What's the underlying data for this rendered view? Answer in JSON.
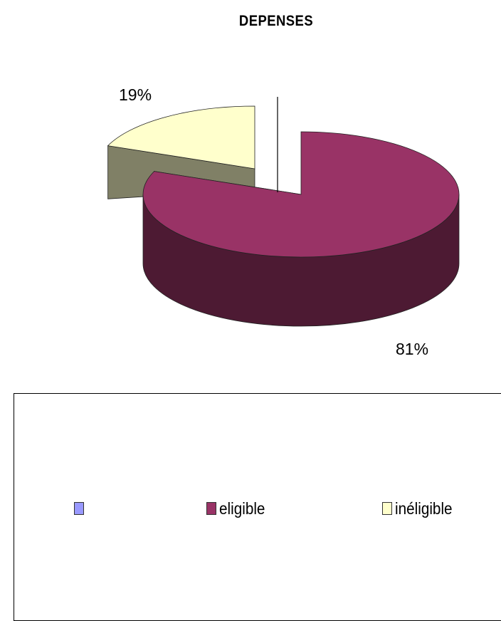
{
  "chart_data": {
    "type": "pie",
    "title": "DEPENSES",
    "slices": [
      {
        "name": "eligible",
        "value": 81,
        "label": "81%",
        "color": "#993366",
        "side_color": "#4d1a33"
      },
      {
        "name": "inéligible",
        "value": 19,
        "label": "19%",
        "color": "#ffffcc",
        "side_color": "#808066"
      }
    ],
    "legend": {
      "placement": "bottom",
      "entries": [
        {
          "label": "",
          "color": "#9999ff"
        },
        {
          "label": "eligible",
          "color": "#993366"
        },
        {
          "label": "inéligible",
          "color": "#ffffcc"
        }
      ]
    }
  }
}
